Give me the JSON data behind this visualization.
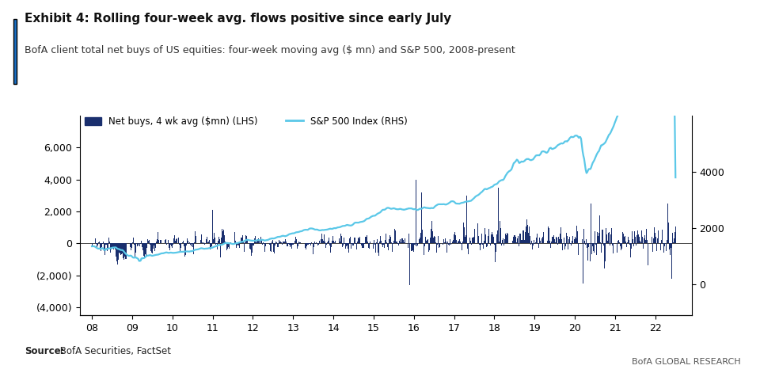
{
  "title": "Exhibit 4: Rolling four-week avg. flows positive since early July",
  "subtitle": "BofA client total net buys of US equities: four-week moving avg ($ mn) and S&P 500, 2008-present",
  "source_label_bold": "Source:",
  "source_label_normal": " BofA Securities, FactSet",
  "branding": "BofA GLOBAL RESEARCH",
  "bar_color": "#1a2f6e",
  "line_color": "#5bc8e8",
  "background_color": "#ffffff",
  "accent_color": "#1a6fc4",
  "lhs_ylim": [
    -4500,
    8000
  ],
  "lhs_yticks": [
    -4000,
    -2000,
    0,
    2000,
    4000,
    6000
  ],
  "lhs_yticklabels": [
    "(4,000)",
    "(2,000)",
    "0",
    "2,000",
    "4,000",
    "6,000"
  ],
  "rhs_ylim": [
    -1100,
    6000
  ],
  "rhs_yticks": [
    0,
    2000,
    4000
  ],
  "rhs_yticklabels": [
    "0",
    "2000",
    "4000"
  ],
  "xtick_labels": [
    "08",
    "09",
    "10",
    "11",
    "12",
    "13",
    "14",
    "15",
    "16",
    "17",
    "18",
    "19",
    "20",
    "21",
    "22"
  ],
  "xstart": 2007.7,
  "xend": 2022.9,
  "legend_bar_label": "Net buys, 4 wk avg ($mn) (LHS)",
  "legend_line_label": "S&P 500 Index (RHS)"
}
